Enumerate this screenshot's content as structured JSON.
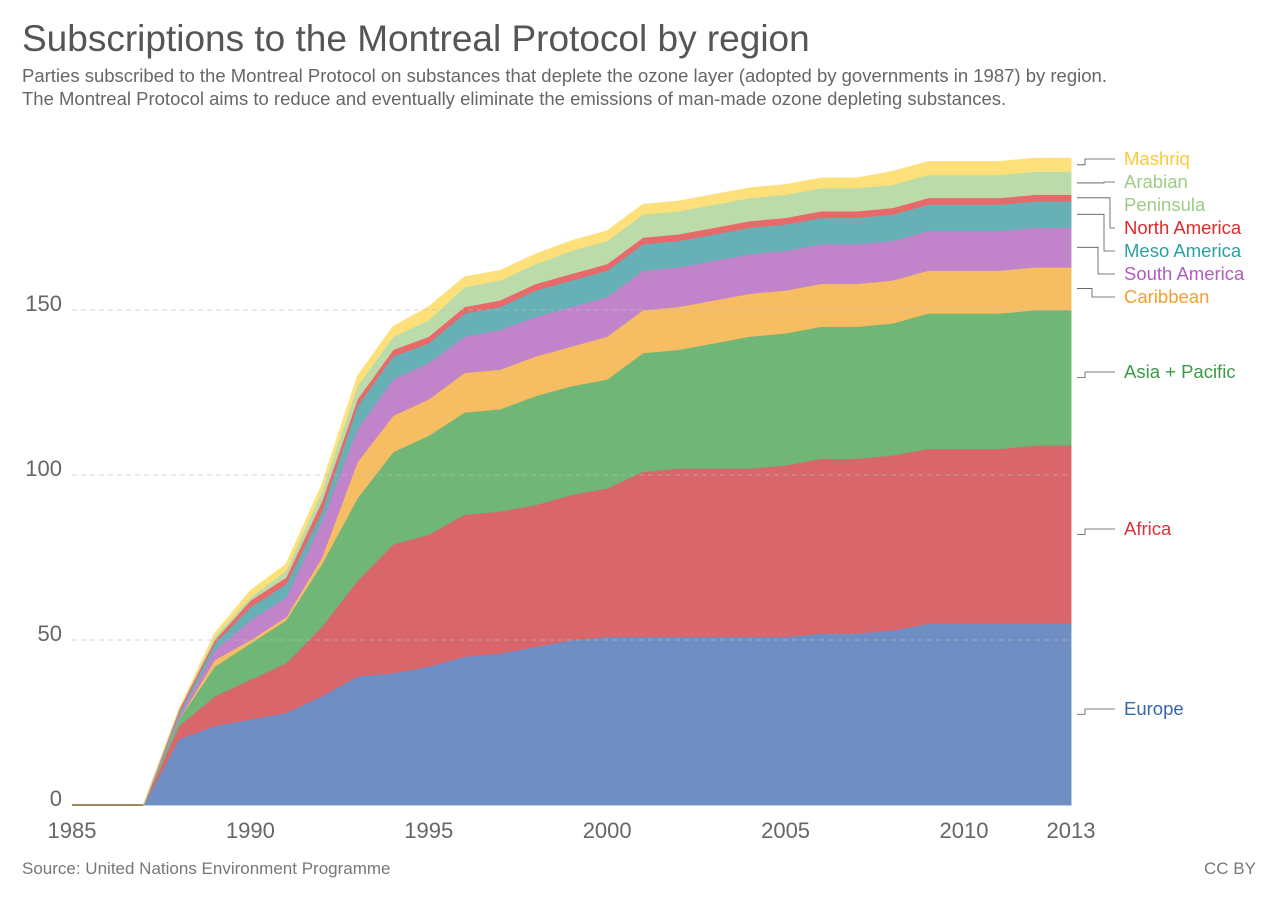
{
  "title": "Subscriptions to the Montreal Protocol by region",
  "subtitle": "Parties subscribed to the Montreal Protocol on substances that deplete the ozone layer (adopted by governments in 1987) by region. The Montreal Protocol aims to reduce and eventually eliminate the emissions of man-made ozone depleting substances.",
  "source": "Source: United Nations Environment Programme",
  "license": "CC BY",
  "chart_data": {
    "type": "area",
    "stacked": true,
    "title": "Subscriptions to the Montreal Protocol by region",
    "xlabel": "",
    "ylabel": "",
    "xlim": [
      1985,
      2013
    ],
    "ylim": [
      0,
      200
    ],
    "x_ticks": [
      "1985",
      "1990",
      "1995",
      "2000",
      "2005",
      "2010",
      "2013"
    ],
    "y_ticks": [
      "0",
      "50",
      "100",
      "150"
    ],
    "grid": "horizontal dashed",
    "legend": "right, labels at series ends",
    "x": [
      1985,
      1986,
      1987,
      1988,
      1989,
      1990,
      1991,
      1992,
      1993,
      1994,
      1995,
      1996,
      1997,
      1998,
      1999,
      2000,
      2001,
      2002,
      2003,
      2004,
      2005,
      2006,
      2007,
      2008,
      2009,
      2010,
      2011,
      2012,
      2013
    ],
    "series": [
      {
        "name": "Europe",
        "color": "#6f8fc4",
        "label_color": "#3a66b0",
        "values": [
          0,
          0,
          0,
          20,
          24,
          26,
          28,
          33,
          39,
          40,
          42,
          45,
          46,
          48,
          50,
          51,
          51,
          51,
          51,
          51,
          51,
          52,
          52,
          53,
          55,
          55,
          55,
          55,
          55
        ]
      },
      {
        "name": "Africa",
        "color": "#d9666a",
        "label_color": "#d9333a",
        "values": [
          0,
          0,
          0,
          4,
          9,
          12,
          15,
          21,
          29,
          39,
          40,
          43,
          43,
          43,
          44,
          45,
          50,
          51,
          51,
          51,
          52,
          53,
          53,
          53,
          53,
          53,
          53,
          54,
          54
        ]
      },
      {
        "name": "Asia + Pacific",
        "color": "#6fb677",
        "label_color": "#3b9a47",
        "values": [
          0,
          0,
          0,
          2,
          9,
          11,
          13,
          19,
          25,
          28,
          30,
          31,
          31,
          33,
          33,
          33,
          36,
          36,
          38,
          40,
          40,
          40,
          40,
          40,
          41,
          41,
          41,
          41,
          41
        ]
      },
      {
        "name": "Caribbean",
        "color": "#f6bd63",
        "label_color": "#f2a030",
        "values": [
          0,
          0,
          0,
          0,
          2,
          1,
          1,
          2,
          11,
          11,
          11,
          12,
          12,
          12,
          12,
          13,
          13,
          13,
          13,
          13,
          13,
          13,
          13,
          13,
          13,
          13,
          13,
          13,
          13
        ]
      },
      {
        "name": "South America",
        "color": "#c184cb",
        "label_color": "#b05cc0",
        "values": [
          0,
          0,
          0,
          1,
          3,
          6,
          6,
          11,
          10,
          11,
          11,
          11,
          12,
          12,
          12,
          12,
          12,
          12,
          12,
          12,
          12,
          12,
          12,
          12,
          12,
          12,
          12,
          12,
          12
        ]
      },
      {
        "name": "Meso America",
        "color": "#67b0b5",
        "label_color": "#2aa1a1",
        "values": [
          0,
          0,
          0,
          1,
          2,
          4,
          4,
          3,
          7,
          7,
          6,
          7,
          7,
          8,
          8,
          8,
          8,
          8,
          8,
          8,
          8,
          8,
          8,
          8,
          8,
          8,
          8,
          8,
          8
        ]
      },
      {
        "name": "North America",
        "color": "#e8696a",
        "label_color": "#e02a2a",
        "values": [
          0,
          0,
          0,
          1,
          1,
          2,
          2,
          3,
          2,
          2,
          2,
          2,
          2,
          2,
          2,
          2,
          2,
          2,
          2,
          2,
          2,
          2,
          2,
          2,
          2,
          2,
          2,
          2,
          2
        ]
      },
      {
        "name": "Arabian Peninsula",
        "label_lines": [
          "Arabian",
          "Peninsula"
        ],
        "color": "#bbdbab",
        "label_color": "#9dcc87",
        "values": [
          0,
          0,
          0,
          0,
          1,
          1,
          2,
          3,
          4,
          4,
          5,
          6,
          6,
          6,
          7,
          7,
          7,
          7,
          7,
          7,
          7,
          7,
          7,
          7,
          7,
          7,
          7,
          7,
          7
        ]
      },
      {
        "name": "Mashriq",
        "color": "#fde07a",
        "label_color": "#f9c93a",
        "values": [
          0,
          0,
          0,
          0,
          1,
          2,
          2,
          2,
          3,
          3,
          4,
          3,
          3,
          3,
          3,
          3,
          3,
          3,
          3,
          3,
          3,
          3,
          3,
          4,
          4,
          4,
          4,
          4,
          4
        ]
      }
    ]
  }
}
